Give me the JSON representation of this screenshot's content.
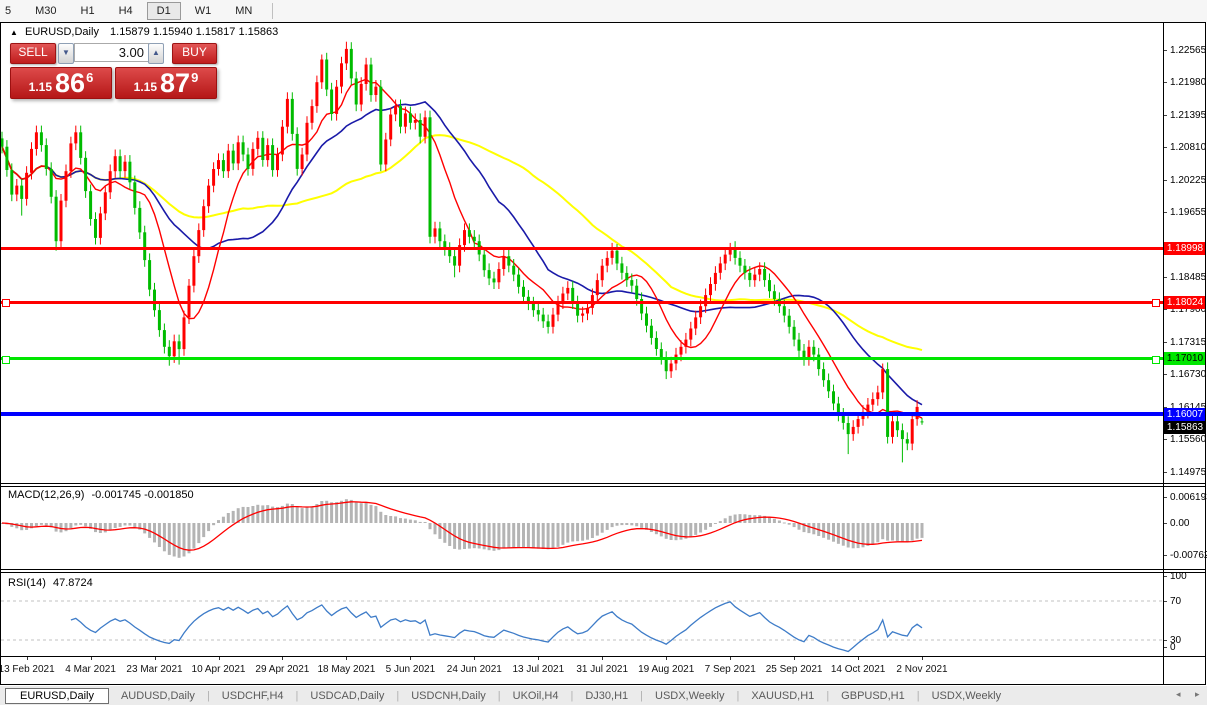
{
  "toolbar": {
    "items": [
      {
        "label": "5",
        "active": false
      },
      {
        "label": "M30",
        "active": false
      },
      {
        "label": "H1",
        "active": false
      },
      {
        "label": "H4",
        "active": false
      },
      {
        "label": "D1",
        "active": true
      },
      {
        "label": "W1",
        "active": false
      },
      {
        "label": "MN",
        "active": false
      }
    ]
  },
  "chart_header": {
    "collapse_icon": "▲",
    "symbol": "EURUSD,Daily",
    "ohlc": "1.15879 1.15940 1.15817 1.15863"
  },
  "trade_panel": {
    "sell_label": "SELL",
    "buy_label": "BUY",
    "amount": "3.00",
    "spin_down_icon": "▼",
    "spin_up_icon": "▲",
    "sell_price": {
      "prefix": "1.15",
      "big": "86",
      "sup": "6"
    },
    "buy_price": {
      "prefix": "1.15",
      "big": "87",
      "sup": "9"
    }
  },
  "indicator_labels": {
    "macd_name": "MACD(12,26,9)",
    "macd_values": "-0.001745 -0.001850",
    "rsi_name": "RSI(14)",
    "rsi_value": "47.8724"
  },
  "price_axis": {
    "ticks": [
      {
        "text": "1.22565",
        "value": 1.22565
      },
      {
        "text": "1.21980",
        "value": 1.2198
      },
      {
        "text": "1.21395",
        "value": 1.21395
      },
      {
        "text": "1.20810",
        "value": 1.2081
      },
      {
        "text": "1.20225",
        "value": 1.20225
      },
      {
        "text": "1.19655",
        "value": 1.19655
      },
      {
        "text": "1.18485",
        "value": 1.18485
      },
      {
        "text": "1.17900",
        "value": 1.179
      },
      {
        "text": "1.17315",
        "value": 1.17315
      },
      {
        "text": "1.16730",
        "value": 1.1673
      },
      {
        "text": "1.16145",
        "value": 1.16145
      },
      {
        "text": "1.15560",
        "value": 1.1556
      },
      {
        "text": "1.14975",
        "value": 1.14975
      }
    ],
    "badges": [
      {
        "text": "1.18998",
        "value": 1.18998,
        "bg": "#ff0000",
        "fg": "#ffffff"
      },
      {
        "text": "1.18024",
        "value": 1.18024,
        "bg": "#ff0000",
        "fg": "#ffffff"
      },
      {
        "text": "1.17010",
        "value": 1.1701,
        "bg": "#00e600",
        "fg": "#000000"
      },
      {
        "text": "1.16007",
        "value": 1.16007,
        "bg": "#0000ff",
        "fg": "#ffffff"
      },
      {
        "text": "1.15863",
        "value": 1.15863,
        "bg": "#000000",
        "fg": "#ffffff"
      }
    ]
  },
  "macd_axis": {
    "ticks": [
      {
        "text": "0.006193",
        "value": 0.006193
      },
      {
        "text": "0.00",
        "value": 0
      },
      {
        "text": "-0.007621",
        "value": -0.007621
      }
    ]
  },
  "rsi_axis": {
    "ticks": [
      {
        "text": "100",
        "value": 100
      },
      {
        "text": "70",
        "value": 70,
        "dashed": true
      },
      {
        "text": "30",
        "value": 30,
        "dashed": true
      },
      {
        "text": "0",
        "value": 0
      }
    ]
  },
  "tabs": {
    "items": [
      {
        "label": "EURUSD,Daily",
        "active": true
      },
      {
        "label": "AUDUSD,Daily",
        "active": false
      },
      {
        "label": "USDCHF,H4",
        "active": false
      },
      {
        "label": "USDCAD,Daily",
        "active": false
      },
      {
        "label": "USDCNH,Daily",
        "active": false
      },
      {
        "label": "UKOil,H4",
        "active": false
      },
      {
        "label": "DJ30,H1",
        "active": false
      },
      {
        "label": "USDX,Weekly",
        "active": false
      },
      {
        "label": "XAUUSD,H1",
        "active": false
      },
      {
        "label": "GBPUSD,H1",
        "active": false
      },
      {
        "label": "USDX,Weekly",
        "active": false
      }
    ],
    "scroll_left": "◂",
    "scroll_right": "▸"
  },
  "colors": {
    "bull": "#ff0000",
    "bear": "#00bb00",
    "ma_fast": "#ff0000",
    "ma_mid": "#1a1aa8",
    "ma_slow": "#ffff00",
    "macd_hist": "#b4b4b4",
    "macd_signal": "#ff0000",
    "rsi_line": "#3e7cc8",
    "level_dash": "#c0c0c0"
  },
  "chart_data": {
    "type": "candlestick",
    "symbol": "EURUSD",
    "timeframe": "Daily",
    "ohlc_display": {
      "open": "1.15879",
      "high": "1.15940",
      "low": "1.15817",
      "close": "1.15863"
    },
    "time_labels": [
      "13 Feb 2021",
      "4 Mar 2021",
      "23 Mar 2021",
      "10 Apr 2021",
      "29 Apr 2021",
      "18 May 2021",
      "5 Jun 2021",
      "24 Jun 2021",
      "13 Jul 2021",
      "31 Jul 2021",
      "19 Aug 2021",
      "7 Sep 2021",
      "25 Sep 2021",
      "14 Oct 2021",
      "2 Nov 2021"
    ],
    "price_range": {
      "top": 1.2292,
      "bottom": 1.1477
    },
    "closes": [
      1.2082,
      1.204,
      1.1996,
      1.2012,
      1.1988,
      1.2035,
      1.2078,
      1.2108,
      1.2085,
      1.2042,
      1.1992,
      1.1912,
      1.1985,
      1.2038,
      1.2088,
      1.2108,
      1.2062,
      1.2002,
      1.1952,
      1.1918,
      1.1962,
      1.2,
      1.2038,
      1.2065,
      1.2038,
      1.2055,
      1.2018,
      1.1972,
      1.1928,
      1.1878,
      1.1825,
      1.1788,
      1.1752,
      1.1722,
      1.1705,
      1.1732,
      1.1718,
      1.1775,
      1.1832,
      1.1885,
      1.1932,
      1.1975,
      1.2012,
      1.2042,
      1.2058,
      1.2038,
      1.2075,
      1.2052,
      1.209,
      1.2068,
      1.2042,
      1.2078,
      1.2098,
      1.2058,
      1.2085,
      1.204,
      1.2068,
      1.2118,
      1.2168,
      1.2105,
      1.2042,
      1.2068,
      1.2125,
      1.2155,
      1.2198,
      1.2239,
      1.2185,
      1.2141,
      1.219,
      1.2232,
      1.2258,
      1.2205,
      1.2158,
      1.2195,
      1.223,
      1.2175,
      1.219,
      1.205,
      1.2095,
      1.214,
      1.2155,
      1.2118,
      1.2142,
      1.2125,
      1.213,
      1.21,
      1.2135,
      1.192,
      1.1935,
      1.1912,
      1.1898,
      1.1885,
      1.1868,
      1.1905,
      1.1932,
      1.192,
      1.1912,
      1.1888,
      1.186,
      1.1845,
      1.1838,
      1.1862,
      1.1885,
      1.1868,
      1.1852,
      1.183,
      1.1812,
      1.18,
      1.1788,
      1.178,
      1.1768,
      1.1758,
      1.178,
      1.1802,
      1.1818,
      1.1828,
      1.1802,
      1.1778,
      1.1782,
      1.1792,
      1.1815,
      1.1842,
      1.1868,
      1.1882,
      1.1895,
      1.1872,
      1.1855,
      1.1842,
      1.1832,
      1.1808,
      1.1782,
      1.176,
      1.1738,
      1.1718,
      1.1702,
      1.1678,
      1.1692,
      1.1708,
      1.1722,
      1.1735,
      1.1755,
      1.1775,
      1.1795,
      1.1815,
      1.1835,
      1.1855,
      1.1872,
      1.1888,
      1.19,
      1.1882,
      1.1868,
      1.1855,
      1.1842,
      1.1852,
      1.1862,
      1.1842,
      1.1822,
      1.1808,
      1.1795,
      1.1778,
      1.1758,
      1.1735,
      1.1715,
      1.17,
      1.1722,
      1.1708,
      1.1682,
      1.1662,
      1.1642,
      1.162,
      1.16,
      1.1585,
      1.1565,
      1.1578,
      1.1592,
      1.1605,
      1.1618,
      1.1628,
      1.164,
      1.1682,
      1.156,
      1.1588,
      1.1572,
      1.1556,
      1.1548,
      1.1592,
      1.1614,
      1.15863
    ],
    "wick_default": 0.0012,
    "extremes": [
      {
        "i": 4,
        "low": 1.1958
      },
      {
        "i": 11,
        "low": 1.1895
      },
      {
        "i": 34,
        "low": 1.1688
      },
      {
        "i": 36,
        "low": 1.169
      },
      {
        "i": 65,
        "high": 1.2248
      },
      {
        "i": 70,
        "high": 1.2271
      },
      {
        "i": 87,
        "low": 1.1908
      },
      {
        "i": 92,
        "low": 1.1847
      },
      {
        "i": 124,
        "high": 1.1909
      },
      {
        "i": 135,
        "low": 1.1664
      },
      {
        "i": 148,
        "high": 1.1909
      },
      {
        "i": 172,
        "low": 1.1529
      },
      {
        "i": 179,
        "high": 1.1692
      },
      {
        "i": 183,
        "low": 1.1514
      }
    ],
    "last_candle": {
      "open": 1.15879,
      "high": 1.1594,
      "low": 1.15817,
      "close": 1.15863
    },
    "moving_averages": [
      {
        "period": 10,
        "color": "#ff0000",
        "width": 1.4
      },
      {
        "period": 25,
        "color": "#1a1aa8",
        "width": 1.6
      },
      {
        "period": 50,
        "color": "#ffff00",
        "width": 2
      }
    ],
    "hlines": [
      {
        "value": 1.18998,
        "color": "#ff0000",
        "thickness": 3,
        "handles": false
      },
      {
        "value": 1.18024,
        "color": "#ff0000",
        "thickness": 3,
        "handles": true
      },
      {
        "value": 1.1701,
        "color": "#00e600",
        "thickness": 3,
        "handles": true
      },
      {
        "value": 1.16007,
        "color": "#0000ff",
        "thickness": 4,
        "handles": false
      }
    ],
    "indicators": {
      "macd": {
        "fast": 12,
        "slow": 26,
        "signal": 9,
        "main_value": -0.001745,
        "signal_value": -0.00185,
        "axis_max": 0.006193,
        "axis_min": -0.007621
      },
      "rsi": {
        "period": 14,
        "value": 47.8724,
        "levels": [
          70,
          30
        ]
      }
    }
  }
}
